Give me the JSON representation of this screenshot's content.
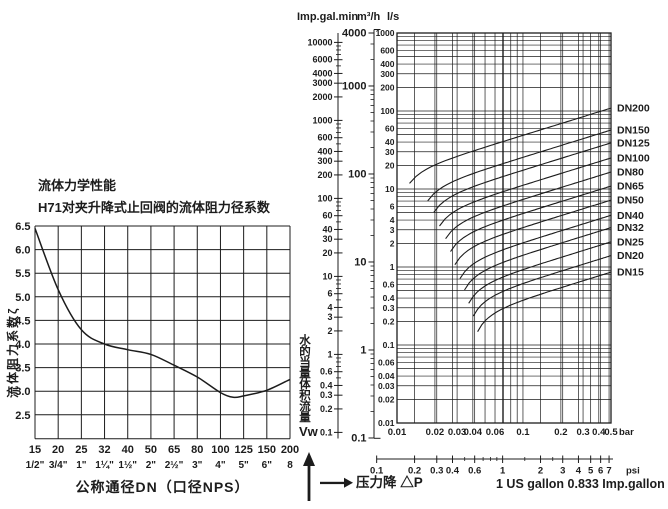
{
  "page": {
    "background": "#ffffff",
    "ink": "#1c1c1c"
  },
  "left_chart": {
    "title_line1": "流体力学性能",
    "title_line2": "H71对夹升降式止回阀的流体阻力径系数",
    "y_axis_label": "流体阻力系数ζ",
    "x_axis_title": "公称通径DN（口径NPS）"
  },
  "right_chart": {
    "unit_header_igpm": "Imp.gal.min",
    "unit_header_m3h": "m³/h",
    "unit_header_ls": "l/s",
    "flow_label_vertical": "水的当量体积流量",
    "flow_symbol": "Vw",
    "pressure_label": "压力降 △P",
    "gallon_note": "1 US gallon 0.833 Imp.gallon",
    "bar_unit": "bar",
    "psi_unit": "psi"
  },
  "chart_data": [
    {
      "type": "line",
      "title": "H71对夹升降式止回阀的流体阻力径系数",
      "xlabel": "公称通径DN（口径NPS）",
      "ylabel": "流体阻力系数ζ",
      "categories": [
        "15",
        "20",
        "25",
        "32",
        "40",
        "50",
        "65",
        "80",
        "100",
        "125",
        "150",
        "200"
      ],
      "categories_nps": [
        "1/2\"",
        "3/4\"",
        "1\"",
        "1¼\"",
        "1½\"",
        "2\"",
        "2½\"",
        "3\"",
        "4\"",
        "5\"",
        "6\"",
        "8"
      ],
      "values": [
        6.45,
        5.15,
        4.3,
        4.0,
        3.88,
        3.78,
        3.55,
        3.3,
        2.97,
        2.9,
        3.02,
        3.25
      ],
      "dip_point": {
        "between_index": 8.55,
        "value": 2.87
      },
      "y_ticks": [
        "6.5",
        "6.0",
        "5.5",
        "5.0",
        "4.5",
        "4.0",
        "3.5",
        "3.0",
        "2.5"
      ],
      "ylim": [
        2.3,
        6.5
      ],
      "grid": true,
      "legend": "none"
    },
    {
      "type": "line",
      "title": "",
      "xlabel": "压力降 △P",
      "ylabel": "水的当量体积流量 Vw",
      "x_axis": {
        "unit_primary": "bar",
        "unit_secondary": "psi",
        "xlim_bar": [
          0.01,
          0.5
        ],
        "ticks_bar": [
          "0.01",
          "0.02",
          "0.03",
          "0.04",
          "0.06",
          "0.1",
          "0.2",
          "0.3",
          "0.4",
          "0.5"
        ],
        "ticks_psi": [
          "0.1",
          "0.2",
          "0.3",
          "0.4",
          "0.6",
          "1",
          "2",
          "3",
          "4",
          "5",
          "6",
          "7"
        ],
        "psi_minor_ticks": [
          0.5,
          0.7,
          0.8,
          0.9,
          1.5,
          2.5
        ],
        "psi_to_bar": 0.0689476,
        "log_scale": true
      },
      "y_axis": {
        "units": [
          "l/s",
          "m³/h",
          "Imp.gal.min"
        ],
        "ylim_ls": [
          0.01,
          1000
        ],
        "ticks_ls": [
          "1000",
          "600",
          "400",
          "300",
          "200",
          "100",
          "60",
          "40",
          "30",
          "20",
          "10",
          "6",
          "4",
          "3",
          "2",
          "1",
          "0.6",
          "0.4",
          "0.3",
          "0.2",
          "0.1",
          "0.06",
          "0.04",
          "0.03",
          "0.02",
          "0.01"
        ],
        "ticks_m3h": [
          "4000",
          "1000",
          "100",
          "10",
          "1",
          "0.1"
        ],
        "ticks_igpm": [
          "10000",
          "6000",
          "4000",
          "3000",
          "2000",
          "1000",
          "600",
          "400",
          "300",
          "200",
          "100",
          "60",
          "40",
          "30",
          "20",
          "10",
          "6",
          "4",
          "3",
          "2",
          "1",
          "0.6",
          "0.4",
          "0.3",
          "0.2",
          "0.1"
        ],
        "log_scale": true
      },
      "series": [
        {
          "name": "DN200",
          "flow_ls_at_0_5bar": 109,
          "steep_drop_bar": 0.0102
        },
        {
          "name": "DN150",
          "flow_ls_at_0_5bar": 57,
          "steep_drop_bar": 0.0145
        },
        {
          "name": "DN125",
          "flow_ls_at_0_5bar": 39,
          "steep_drop_bar": 0.0163
        },
        {
          "name": "DN100",
          "flow_ls_at_0_5bar": 25,
          "steep_drop_bar": 0.0182
        },
        {
          "name": "DN80",
          "flow_ls_at_0_5bar": 16.5,
          "steep_drop_bar": 0.0205
        },
        {
          "name": "DN65",
          "flow_ls_at_0_5bar": 10.9,
          "steep_drop_bar": 0.0225
        },
        {
          "name": "DN50",
          "flow_ls_at_0_5bar": 7.2,
          "steep_drop_bar": 0.0245
        },
        {
          "name": "DN40",
          "flow_ls_at_0_5bar": 4.6,
          "steep_drop_bar": 0.027
        },
        {
          "name": "DN32",
          "flow_ls_at_0_5bar": 3.2,
          "steep_drop_bar": 0.0295
        },
        {
          "name": "DN25",
          "flow_ls_at_0_5bar": 2.1,
          "steep_drop_bar": 0.032
        },
        {
          "name": "DN20",
          "flow_ls_at_0_5bar": 1.4,
          "steep_drop_bar": 0.035
        },
        {
          "name": "DN15",
          "flow_ls_at_0_5bar": 0.86,
          "steep_drop_bar": 0.038
        }
      ],
      "curve_model": "flow = flow_at_0.5bar * sqrt(dp/0.5), steep cutoff below steep_drop_bar",
      "note": "1 US gallon 0.833 Imp.gallon",
      "grid": true,
      "legend": "curve-end-labels-right"
    }
  ]
}
